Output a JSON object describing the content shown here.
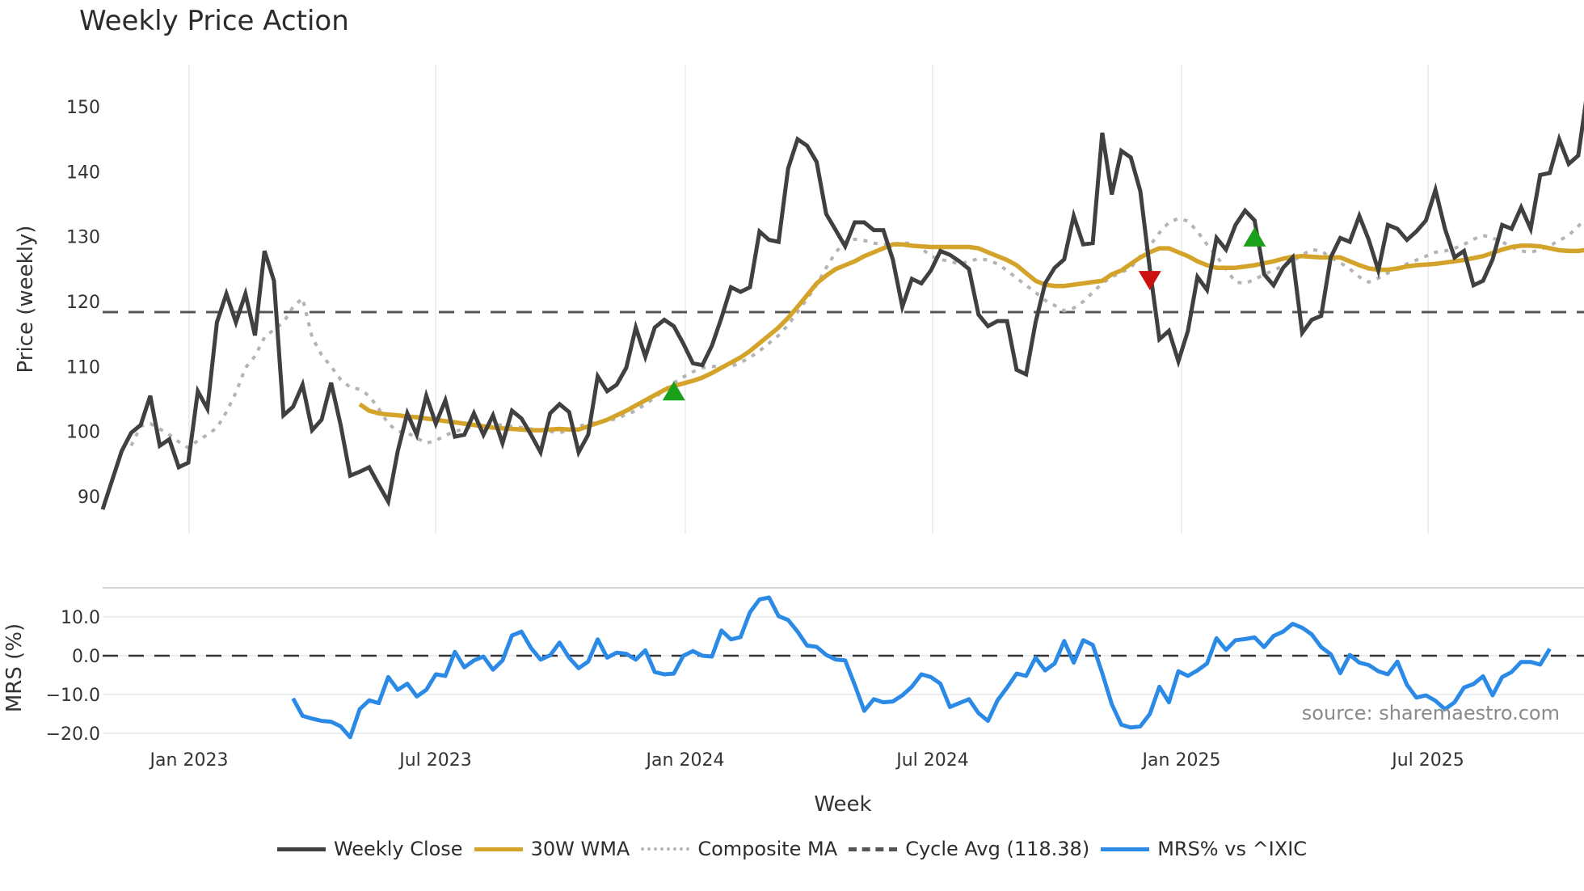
{
  "title": "Weekly Price Action",
  "source_note": "source: sharemaestro.com",
  "legend": [
    {
      "label": "Weekly Close",
      "color": "#404040",
      "style": "solid"
    },
    {
      "label": "30W WMA",
      "color": "#d4a32a",
      "style": "solid"
    },
    {
      "label": "Composite MA",
      "color": "#b4b4b4",
      "style": "dotted"
    },
    {
      "label": "Cycle Avg (118.38)",
      "color": "#555555",
      "style": "dashed"
    },
    {
      "label": "MRS% vs ^IXIC",
      "color": "#2a8ae6",
      "style": "solid"
    }
  ],
  "chart_data": [
    {
      "type": "line",
      "title": "Weekly Price Action",
      "xlabel": "Week",
      "ylabel": "Price (weekly)",
      "x_ticks": [
        "Jan 2023",
        "Jul 2023",
        "Jan 2024",
        "Jul 2024",
        "Jan 2025",
        "Jul 2025"
      ],
      "y_ticks": [
        90,
        100,
        110,
        120,
        130,
        140,
        150
      ],
      "ylim": [
        86,
        156
      ],
      "grid": "vertical",
      "reference_line": {
        "label": "Cycle Avg",
        "value": 118.38
      },
      "series": [
        {
          "name": "Weekly Close",
          "color": "#404040",
          "values": [
            88,
            92.5,
            97,
            99.8,
            101,
            105.5,
            97.8,
            98.8,
            94.5,
            95.2,
            106.2,
            103.5,
            116.8,
            121.2,
            116.8,
            121.2,
            114.8,
            127.8,
            123.2,
            102.5,
            103.8,
            107.2,
            100.2,
            101.8,
            107.5,
            101,
            93.2,
            93.8,
            94.5,
            91.8,
            89.2,
            97,
            102.8,
            99.5,
            105.5,
            101.2,
            104.8,
            99.2,
            99.5,
            102.8,
            99.5,
            102.5,
            98.2,
            103.2,
            102,
            99.5,
            96.8,
            102.8,
            104.2,
            103,
            96.8,
            99.5,
            108.5,
            106.2,
            107.2,
            109.8,
            116,
            111.5,
            116,
            117.2,
            116.2,
            113.5,
            110.5,
            110.2,
            113.2,
            117.5,
            122.2,
            121.5,
            122.2,
            130.8,
            129.5,
            129.2,
            140.5,
            145,
            144,
            141.5,
            133.5,
            131,
            128.5,
            132.2,
            132.2,
            131,
            131,
            126.5,
            119.2,
            123.5,
            122.8,
            124.8,
            127.8,
            127.2,
            126.2,
            125,
            118,
            116.2,
            117,
            117,
            109.5,
            108.8,
            116.8,
            122.8,
            125.2,
            126.5,
            133.2,
            128.8,
            129,
            146,
            136.5,
            143.2,
            142.2,
            137,
            125,
            114.2,
            115.5,
            110.8,
            115.5,
            123.8,
            121.8,
            129.8,
            128,
            131.8,
            134,
            132.5,
            124.2,
            122.5,
            125.2,
            126.8,
            115.2,
            117.2,
            117.8,
            126.8,
            129.8,
            129.2,
            133.2,
            129.5,
            124.8,
            131.8,
            131.2,
            129.5,
            130.8,
            132.5,
            137.2,
            131.2,
            126.8,
            127.8,
            122.5,
            123.2,
            126.5,
            131.8,
            131.2,
            134.5,
            131.2,
            139.5,
            139.8,
            145,
            141.2,
            142.5,
            152.8
          ]
        },
        {
          "name": "30W WMA",
          "color": "#d4a32a",
          "start_index": 27,
          "values": [
            104.2,
            103.2,
            102.8,
            102.6,
            102.5,
            102.3,
            102.2,
            102,
            101.8,
            101.6,
            101.4,
            101.2,
            101,
            100.8,
            100.6,
            100.5,
            100.4,
            100.3,
            100.2,
            100.2,
            100.3,
            100.4,
            100.3,
            100.3,
            100.8,
            101.3,
            101.8,
            102.5,
            103.2,
            104,
            104.8,
            105.6,
            106.4,
            107,
            107.4,
            107.8,
            108.3,
            109,
            109.8,
            110.6,
            111.4,
            112.4,
            113.6,
            114.8,
            116,
            117.5,
            119.2,
            121,
            122.8,
            124,
            125,
            125.6,
            126.2,
            127,
            127.6,
            128.2,
            128.8,
            128.8,
            128.6,
            128.5,
            128.4,
            128.4,
            128.4,
            128.4,
            128.4,
            128.2,
            127.6,
            127,
            126.4,
            125.6,
            124.4,
            123.2,
            122.6,
            122.4,
            122.4,
            122.6,
            122.8,
            123,
            123.2,
            124.2,
            124.8,
            125.8,
            126.8,
            127.6,
            128.2,
            128.2,
            127.6,
            127,
            126.2,
            125.6,
            125.2,
            125.2,
            125.2,
            125.4,
            125.6,
            125.9,
            126.2,
            126.6,
            126.9,
            127,
            126.9,
            126.8,
            126.8,
            126.8,
            126.2,
            125.6,
            125.1,
            124.9,
            124.9,
            125.1,
            125.4,
            125.6,
            125.7,
            125.8,
            126,
            126.2,
            126.4,
            126.7,
            127,
            127.5,
            128,
            128.4,
            128.6,
            128.6,
            128.5,
            128.2,
            127.9,
            127.8,
            127.8,
            128,
            128.3,
            128.6,
            128.9,
            129.4,
            130,
            130.8,
            131.6,
            132.4,
            133.2,
            133.8,
            134.8
          ]
        },
        {
          "name": "Composite MA",
          "color": "#b4b4b4",
          "start_index": 3,
          "values": [
            97.8,
            100.8,
            101.2,
            100.4,
            99.5,
            98.4,
            97.5,
            98.6,
            99.5,
            100.6,
            103,
            106,
            109.8,
            111.6,
            114.5,
            115.7,
            116.8,
            119.2,
            120.5,
            114.5,
            111.8,
            110,
            108,
            106.8,
            106.5,
            105.5,
            103.5,
            101.2,
            100,
            99.8,
            99,
            98.2,
            98.6,
            99.4,
            100,
            100.4,
            100.8,
            101,
            101,
            101,
            100.8,
            100.6,
            100.4,
            100.2,
            100,
            99.8,
            100.2,
            100.8,
            101.2,
            101.4,
            101.6,
            102,
            102.6,
            103.2,
            104.2,
            105.2,
            106.4,
            107.5,
            108.4,
            109.2,
            109.8,
            110,
            110,
            110,
            110.6,
            111.4,
            112.4,
            113.6,
            114.8,
            116.4,
            118.4,
            120.4,
            122.6,
            125.2,
            127.6,
            129.2,
            129.6,
            129.4,
            129,
            128.8,
            128.9,
            129,
            129,
            128.2,
            127,
            126.5,
            126.2,
            125.8,
            126.2,
            126.6,
            126.4,
            125.8,
            124.8,
            123.6,
            122.5,
            121.4,
            120.2,
            119.4,
            118.6,
            119,
            120,
            121.4,
            122.8,
            123.8,
            124.5,
            125.2,
            127,
            128.6,
            130.6,
            132.2,
            132.8,
            132.4,
            130.8,
            128.8,
            127,
            125,
            123,
            122.8,
            123.4,
            124.2,
            124.8,
            125.5,
            126.2,
            127.2,
            128,
            127.8,
            126.8,
            126,
            125,
            123.8,
            123,
            123.6,
            124.4,
            125.2,
            125.8,
            126.4,
            127,
            127.6,
            127.8,
            128.2,
            128.8,
            129.6,
            130.2,
            129.8,
            129.2,
            128.4,
            127.8,
            127.6,
            128,
            128.6,
            129.4,
            130.2,
            131.6,
            133.2,
            134.4,
            135.6,
            138
          ]
        },
        {
          "name": "Cycle Avg (118.38)",
          "color": "#555555",
          "constant": 118.38
        }
      ],
      "markers": [
        {
          "type": "buy",
          "shape": "triangle-up",
          "color": "#1aa01a",
          "x_index": 60,
          "y": 106
        },
        {
          "type": "sell",
          "shape": "triangle-down",
          "color": "#cc1111",
          "x_index": 110,
          "y": 123.5
        },
        {
          "type": "buy",
          "shape": "triangle-up",
          "color": "#1aa01a",
          "x_index": 121,
          "y": 129.7
        }
      ]
    },
    {
      "type": "line",
      "title": "",
      "xlabel": "Week",
      "ylabel": "MRS (%)",
      "x_ticks": [
        "Jan 2023",
        "Jul 2023",
        "Jan 2024",
        "Jul 2024",
        "Jan 2025",
        "Jul 2025"
      ],
      "y_ticks": [
        -20.0,
        -10.0,
        0.0,
        10.0
      ],
      "ylim": [
        -23,
        17
      ],
      "grid": "horizontal",
      "reference_line": {
        "value": 0.0
      },
      "series": [
        {
          "name": "MRS% vs ^IXIC",
          "color": "#2a8ae6",
          "start_index": 20,
          "values": [
            -11,
            -15.5,
            -16.2,
            -16.8,
            -17,
            -18.2,
            -21,
            -13.8,
            -11.5,
            -12.2,
            -5.5,
            -8.8,
            -7.2,
            -10.5,
            -8.8,
            -4.8,
            -5.2,
            1,
            -3,
            -1.2,
            -0.2,
            -3.6,
            -1.2,
            5.2,
            6.2,
            2,
            -1,
            0.1,
            3.4,
            -0.5,
            -3.2,
            -1.5,
            4.2,
            -0.5,
            0.8,
            0.5,
            -1,
            1.4,
            -4.2,
            -4.8,
            -4.6,
            0,
            1.2,
            0,
            -0.2,
            6.5,
            4.2,
            4.8,
            11.2,
            14.5,
            15,
            10.2,
            9.2,
            6.2,
            2.6,
            2.3,
            0.2,
            -1,
            -1.2,
            -7.5,
            -14.2,
            -11.2,
            -12,
            -11.8,
            -10.2,
            -8,
            -4.8,
            -5.5,
            -7.2,
            -13.2,
            -12.2,
            -11.2,
            -14.8,
            -16.8,
            -11.5,
            -8.2,
            -4.6,
            -5.2,
            -0.5,
            -3.8,
            -2,
            3.8,
            -1.8,
            4,
            2.8,
            -4.5,
            -12.5,
            -17.8,
            -18.5,
            -18.2,
            -15,
            -8,
            -12,
            -4,
            -5.2,
            -3.8,
            -2,
            4.5,
            1.5,
            4,
            4.3,
            4.7,
            2.2,
            5.1,
            6.2,
            8.2,
            7.2,
            5.5,
            2.2,
            0.4,
            -4.5,
            0.2,
            -1.8,
            -2.4,
            -4,
            -4.8,
            -1.5,
            -7.5,
            -10.8,
            -10.2,
            -11.6,
            -13.8,
            -12,
            -8.2,
            -7.3,
            -5.3,
            -10.2,
            -5.5,
            -4.2,
            -1.6,
            -1.6,
            -2.3,
            1.8
          ]
        }
      ]
    }
  ]
}
